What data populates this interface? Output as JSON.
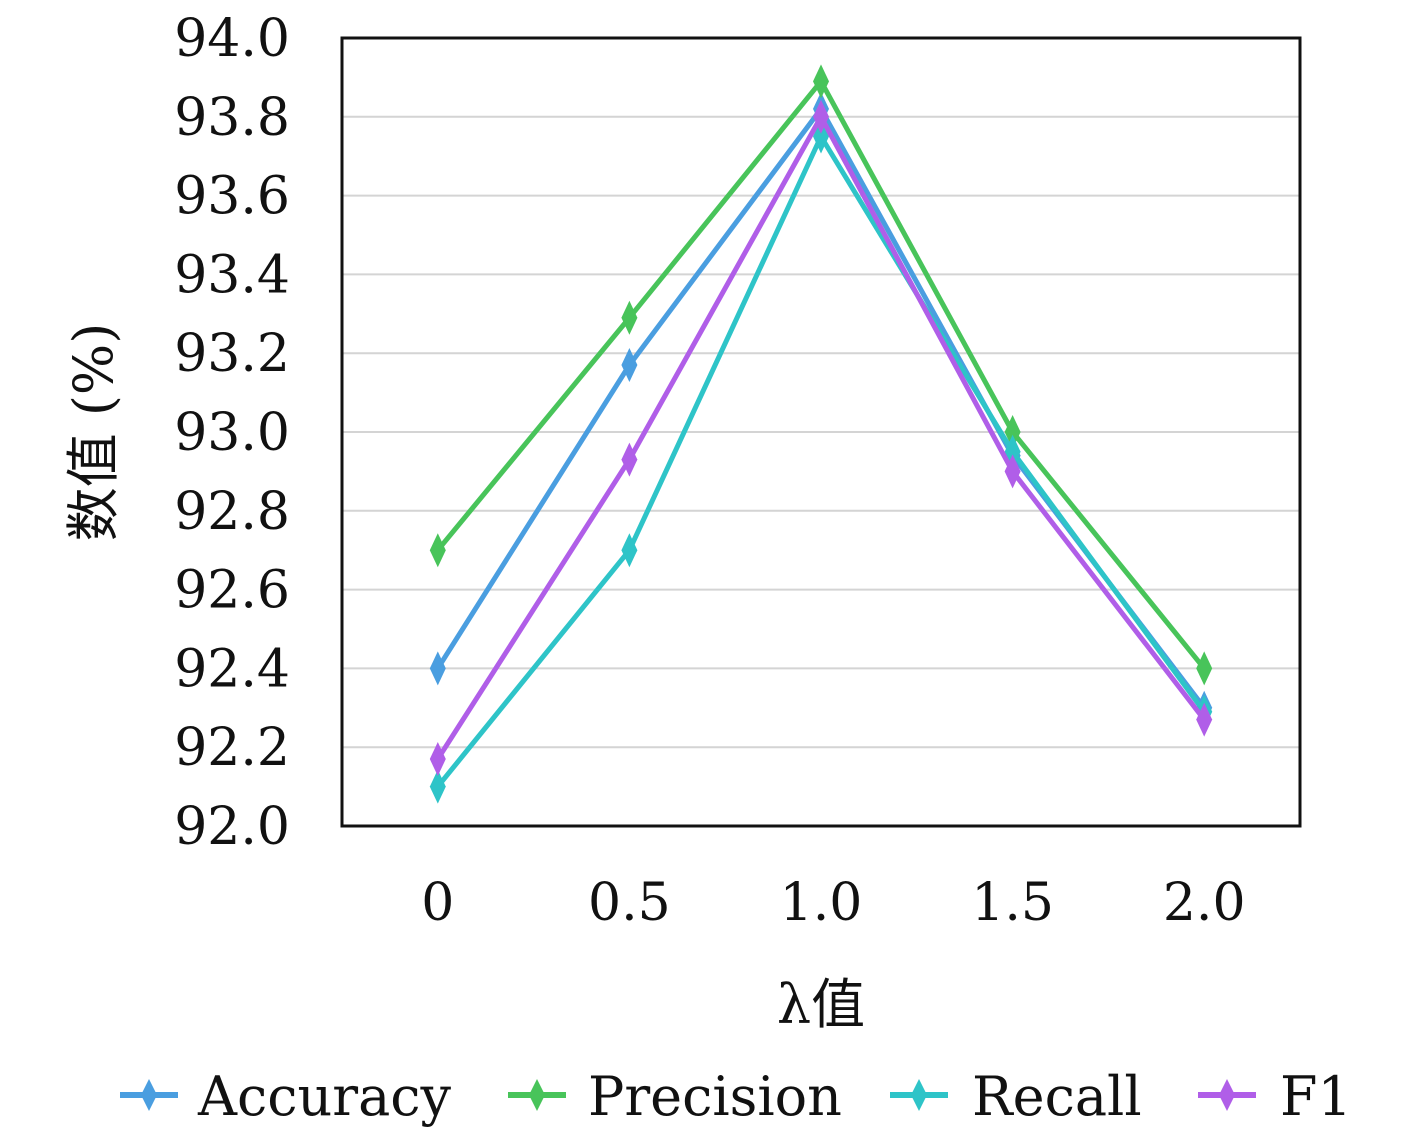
{
  "chart_data": {
    "type": "line",
    "categories": [
      "0",
      "0.5",
      "1.0",
      "1.5",
      "2.0"
    ],
    "x": [
      0,
      0.5,
      1.0,
      1.5,
      2.0
    ],
    "xlabel": "λ值",
    "ylabel": "数值 (%)",
    "ylim": [
      92.0,
      94.0
    ],
    "yticks": [
      "92.0",
      "92.2",
      "92.4",
      "92.6",
      "92.8",
      "93.0",
      "93.2",
      "93.4",
      "93.6",
      "93.8",
      "94.0"
    ],
    "grid": "horizontal",
    "legend_position": "bottom",
    "series": [
      {
        "name": "Accuracy",
        "color": "#4a9ee0",
        "values": [
          92.4,
          93.17,
          93.82,
          92.94,
          92.3
        ]
      },
      {
        "name": "Precision",
        "color": "#48c45a",
        "values": [
          92.7,
          93.29,
          93.89,
          93.0,
          92.4
        ]
      },
      {
        "name": "Recall",
        "color": "#2ec4c8",
        "values": [
          92.1,
          92.7,
          93.75,
          92.95,
          92.29
        ]
      },
      {
        "name": "F1",
        "color": "#b05ee8",
        "values": [
          92.17,
          92.93,
          93.8,
          92.9,
          92.27
        ]
      }
    ]
  }
}
